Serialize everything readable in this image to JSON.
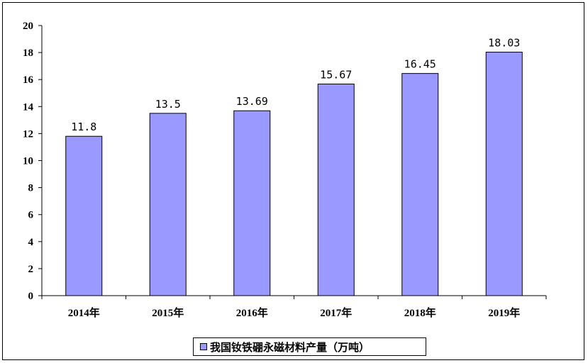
{
  "chart_data": {
    "type": "bar",
    "categories": [
      "2014年",
      "2015年",
      "2016年",
      "2017年",
      "2018年",
      "2019年"
    ],
    "series": [
      {
        "name": "我国钕铁硼永磁材料产量（万吨）",
        "values": [
          11.8,
          13.5,
          13.69,
          15.67,
          16.45,
          18.03
        ],
        "color": "#9999ff"
      }
    ],
    "data_labels": [
      "11.8",
      "13.5",
      "13.69",
      "15.67",
      "16.45",
      "18.03"
    ],
    "title": "",
    "xlabel": "",
    "ylabel": "",
    "ylim": [
      0,
      20
    ],
    "yticks": [
      0,
      2,
      4,
      6,
      8,
      10,
      12,
      14,
      16,
      18,
      20
    ],
    "grid": false,
    "legend_position": "bottom-center"
  }
}
